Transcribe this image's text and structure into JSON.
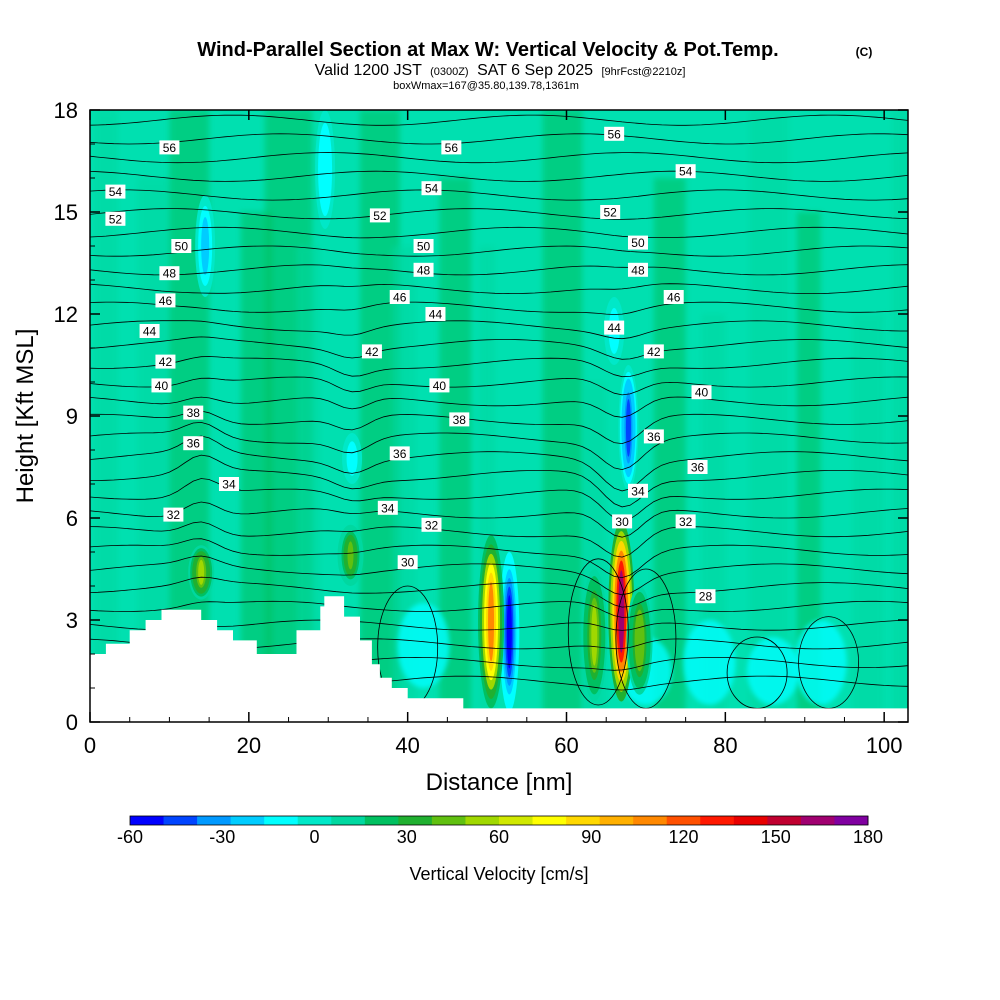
{
  "chart_data": {
    "type": "heatmap",
    "title": "Wind-Parallel Section at Max W: Vertical Velocity & Pot.Temp.",
    "title_suffix": "(C)",
    "subtitle_prefix": "Valid 1200 JST",
    "subtitle_utc": "(0300Z)",
    "subtitle_date": "SAT 6 Sep 2025",
    "subtitle_fcst": "[9hrFcst@2210z]",
    "subtitle2": "boxWmax=167@35.80,139.78,1361m",
    "xlabel": "Distance [nm]",
    "ylabel": "Height [Kft MSL]",
    "xlim": [
      0,
      103
    ],
    "ylim": [
      0,
      18
    ],
    "xticks": [
      "0",
      "20",
      "40",
      "60",
      "80",
      "100"
    ],
    "yticks": [
      "0",
      "3",
      "6",
      "9",
      "12",
      "15",
      "18"
    ],
    "colorbar": {
      "label": "Vertical Velocity [cm/s]",
      "tick_labels": [
        "-60",
        "-30",
        "0",
        "30",
        "60",
        "90",
        "120",
        "150",
        "180"
      ],
      "min": -60,
      "max": 180,
      "colors": [
        "#0000ff",
        "#0044ff",
        "#0099ff",
        "#00ccff",
        "#00ffff",
        "#00e8c8",
        "#00d8a0",
        "#00c060",
        "#20b030",
        "#60c010",
        "#a0d800",
        "#d0e800",
        "#ffff00",
        "#ffd800",
        "#ffb000",
        "#ff8800",
        "#ff5000",
        "#ff1800",
        "#e80000",
        "#c00030",
        "#a00070",
        "#8000a0"
      ]
    },
    "field_max_cm_s": 167,
    "terrain_kft": [
      [
        0,
        2.0
      ],
      [
        2,
        2.0
      ],
      [
        2,
        2.3
      ],
      [
        5,
        2.3
      ],
      [
        5,
        2.7
      ],
      [
        7,
        2.7
      ],
      [
        7,
        3.0
      ],
      [
        9,
        3.0
      ],
      [
        9,
        3.3
      ],
      [
        14,
        3.3
      ],
      [
        14,
        3.0
      ],
      [
        16,
        3.0
      ],
      [
        16,
        2.7
      ],
      [
        18,
        2.7
      ],
      [
        18,
        2.4
      ],
      [
        21,
        2.4
      ],
      [
        21,
        2.0
      ],
      [
        26,
        2.0
      ],
      [
        26,
        2.7
      ],
      [
        29,
        2.7
      ],
      [
        29,
        3.4
      ],
      [
        29.5,
        3.4
      ],
      [
        29.5,
        3.7
      ],
      [
        32,
        3.7
      ],
      [
        32,
        3.1
      ],
      [
        34,
        3.1
      ],
      [
        34,
        2.4
      ],
      [
        35.5,
        2.4
      ],
      [
        35.5,
        1.7
      ],
      [
        36.5,
        1.7
      ],
      [
        36.5,
        1.3
      ],
      [
        38,
        1.3
      ],
      [
        38,
        1.0
      ],
      [
        40,
        1.0
      ],
      [
        40,
        0.7
      ],
      [
        47,
        0.7
      ],
      [
        47,
        0.4
      ],
      [
        103,
        0.4
      ]
    ],
    "updrafts": [
      {
        "x": 50.5,
        "y0": 0.4,
        "y1": 5.5,
        "w_cm_s": 110
      },
      {
        "x": 66.9,
        "y0": 0.6,
        "y1": 5.9,
        "w_cm_s": 167
      },
      {
        "x": 14.0,
        "y0": 3.6,
        "y1": 5.2,
        "w_cm_s": 55
      },
      {
        "x": 32.8,
        "y0": 4.0,
        "y1": 5.8,
        "w_cm_s": 40
      },
      {
        "x": 63.5,
        "y0": 0.6,
        "y1": 4.5,
        "w_cm_s": 50
      },
      {
        "x": 69.2,
        "y0": 0.8,
        "y1": 4.0,
        "w_cm_s": 45
      }
    ],
    "downdrafts": [
      {
        "x": 52.8,
        "y0": 0.3,
        "y1": 5.0,
        "w_cm_s": -55
      },
      {
        "x": 67.8,
        "y0": 6.8,
        "y1": 10.5,
        "w_cm_s": -45
      },
      {
        "x": 29.6,
        "y0": 14.5,
        "y1": 18.0,
        "w_cm_s": -20
      },
      {
        "x": 14.5,
        "y0": 12.5,
        "y1": 15.5,
        "w_cm_s": -25
      },
      {
        "x": 33.0,
        "y0": 7.0,
        "y1": 8.5,
        "w_cm_s": -15
      },
      {
        "x": 66.0,
        "y0": 10.5,
        "y1": 12.5,
        "w_cm_s": -15
      }
    ],
    "theta_contours_C": [
      28,
      30,
      32,
      34,
      36,
      38,
      40,
      42,
      44,
      46,
      48,
      50,
      52,
      54,
      56
    ],
    "contour_labels": [
      {
        "text": "56",
        "x": 10.0,
        "y": 16.9
      },
      {
        "text": "56",
        "x": 45.5,
        "y": 16.9
      },
      {
        "text": "56",
        "x": 66.0,
        "y": 17.3
      },
      {
        "text": "54",
        "x": 3.2,
        "y": 15.6
      },
      {
        "text": "54",
        "x": 43.0,
        "y": 15.7
      },
      {
        "text": "54",
        "x": 75.0,
        "y": 16.2
      },
      {
        "text": "52",
        "x": 3.2,
        "y": 14.8
      },
      {
        "text": "52",
        "x": 36.5,
        "y": 14.9
      },
      {
        "text": "52",
        "x": 65.5,
        "y": 15.0
      },
      {
        "text": "50",
        "x": 11.5,
        "y": 14.0
      },
      {
        "text": "50",
        "x": 42.0,
        "y": 14.0
      },
      {
        "text": "50",
        "x": 69.0,
        "y": 14.1
      },
      {
        "text": "48",
        "x": 10.0,
        "y": 13.2
      },
      {
        "text": "48",
        "x": 42.0,
        "y": 13.3
      },
      {
        "text": "48",
        "x": 69.0,
        "y": 13.3
      },
      {
        "text": "46",
        "x": 9.5,
        "y": 12.4
      },
      {
        "text": "46",
        "x": 39.0,
        "y": 12.5
      },
      {
        "text": "46",
        "x": 73.5,
        "y": 12.5
      },
      {
        "text": "44",
        "x": 7.5,
        "y": 11.5
      },
      {
        "text": "44",
        "x": 43.5,
        "y": 12.0
      },
      {
        "text": "44",
        "x": 66.0,
        "y": 11.6
      },
      {
        "text": "42",
        "x": 9.5,
        "y": 10.6
      },
      {
        "text": "42",
        "x": 35.5,
        "y": 10.9
      },
      {
        "text": "42",
        "x": 71.0,
        "y": 10.9
      },
      {
        "text": "40",
        "x": 9.0,
        "y": 9.9
      },
      {
        "text": "40",
        "x": 44.0,
        "y": 9.9
      },
      {
        "text": "40",
        "x": 77.0,
        "y": 9.7
      },
      {
        "text": "38",
        "x": 13.0,
        "y": 9.1
      },
      {
        "text": "38",
        "x": 46.5,
        "y": 8.9
      },
      {
        "text": "36",
        "x": 13.0,
        "y": 8.2
      },
      {
        "text": "36",
        "x": 39.0,
        "y": 7.9
      },
      {
        "text": "36",
        "x": 71.0,
        "y": 8.4
      },
      {
        "text": "36",
        "x": 76.5,
        "y": 7.5
      },
      {
        "text": "34",
        "x": 17.5,
        "y": 7.0
      },
      {
        "text": "34",
        "x": 37.5,
        "y": 6.3
      },
      {
        "text": "34",
        "x": 69.0,
        "y": 6.8
      },
      {
        "text": "32",
        "x": 10.5,
        "y": 6.1
      },
      {
        "text": "32",
        "x": 43.0,
        "y": 5.8
      },
      {
        "text": "32",
        "x": 75.0,
        "y": 5.9
      },
      {
        "text": "30",
        "x": 40.0,
        "y": 4.7
      },
      {
        "text": "30",
        "x": 67.0,
        "y": 5.9
      },
      {
        "text": "28",
        "x": 77.5,
        "y": 3.7
      }
    ]
  }
}
